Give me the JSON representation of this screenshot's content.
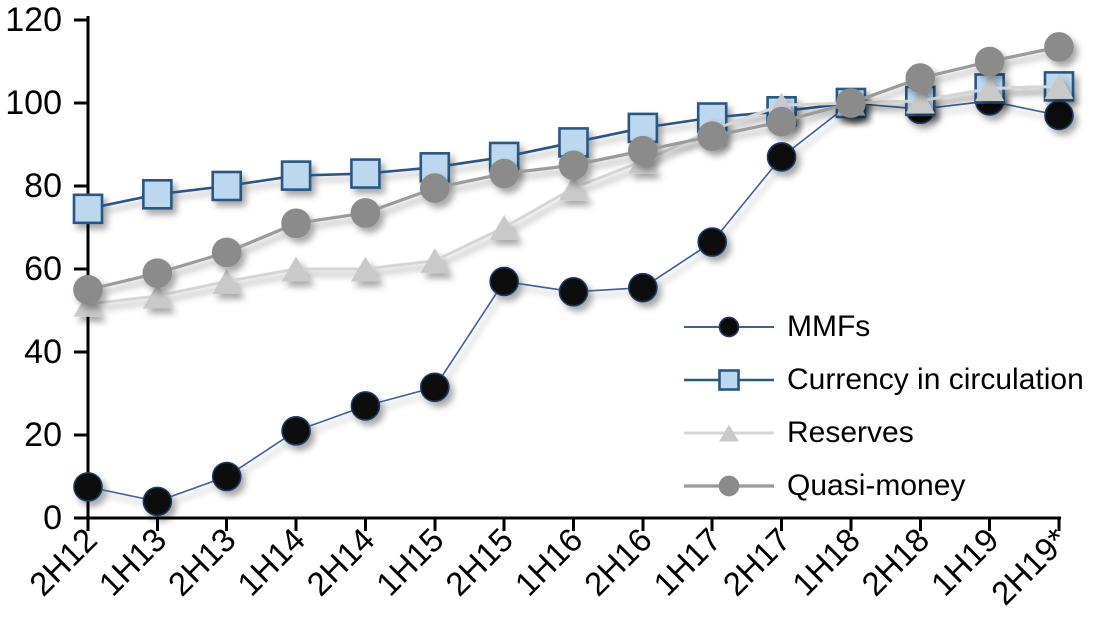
{
  "chart": {
    "background": "#ffffff",
    "axis_color": "#000000",
    "y_tick_labels": [
      "0",
      "20",
      "40",
      "60",
      "80",
      "100",
      "120"
    ]
  },
  "chart_data": {
    "type": "line",
    "title": "",
    "xlabel": "",
    "ylabel": "",
    "ylim": [
      0,
      120
    ],
    "ytick_step": 20,
    "grid": false,
    "legend_position": "inside-right",
    "categories": [
      "2H12",
      "1H13",
      "2H13",
      "1H14",
      "2H14",
      "1H15",
      "2H15",
      "1H16",
      "2H16",
      "1H17",
      "2H17",
      "1H18",
      "2H18",
      "1H19",
      "2H19*"
    ],
    "series": [
      {
        "name": "MMFs",
        "marker": "circle",
        "marker_fill": "#0a0a0a",
        "marker_stroke": "#1F3864",
        "line_color": "#3F5F95",
        "line_width": 1.6,
        "values": [
          7.5,
          4,
          10,
          21,
          27,
          31.5,
          57,
          54.5,
          55.5,
          66.5,
          87,
          100,
          98.5,
          100.5,
          97
        ]
      },
      {
        "name": "Currency in circulation",
        "marker": "square",
        "marker_fill": "#BDD7EE",
        "marker_stroke": "#2A5783",
        "line_color": "#2A5783",
        "line_width": 2.6,
        "values": [
          74.5,
          78,
          80,
          82.5,
          83,
          84.5,
          87,
          90.5,
          94,
          96.5,
          98,
          100,
          100.5,
          103.5,
          104
        ]
      },
      {
        "name": "Reserves",
        "marker": "triangle",
        "marker_fill": "#C9C9C9",
        "marker_stroke": "#C9C9C9",
        "line_color": "#D5D5D5",
        "line_width": 3,
        "values": [
          51.5,
          53.5,
          57,
          60,
          60,
          62,
          70,
          79.5,
          86,
          93.5,
          99.5,
          100,
          100.5,
          103.5,
          104
        ]
      },
      {
        "name": "Quasi-money",
        "marker": "circle",
        "marker_fill": "#8B8B8B",
        "marker_stroke": "#8B8B8B",
        "line_color": "#9B9B9B",
        "line_width": 3.2,
        "values": [
          55,
          59,
          64,
          71,
          73.5,
          79.5,
          83,
          85,
          88.5,
          92,
          95.5,
          100,
          106,
          110,
          113.5
        ]
      }
    ]
  }
}
